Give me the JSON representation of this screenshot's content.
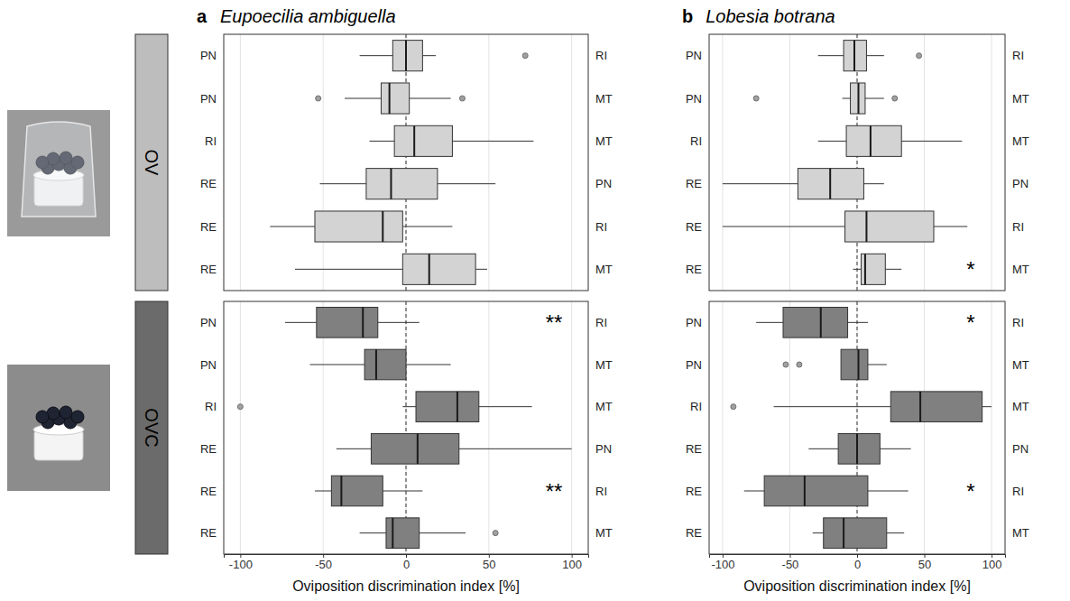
{
  "chart_data": [
    {
      "type": "box",
      "orientation": "horizontal",
      "panel_label": "a",
      "title": "Eupoecilia ambiguella",
      "group_label": "OV",
      "grid": true,
      "tick_labels": false,
      "color": "#d3d3d3",
      "xlim": [
        -110,
        110
      ],
      "xticks": [
        -100,
        -50,
        0,
        50,
        100
      ],
      "reference_x": 0,
      "categories": [
        "PN",
        "PN",
        "RI",
        "RE",
        "RE",
        "RE"
      ],
      "categories_right": [
        "RI",
        "MT",
        "MT",
        "PN",
        "RI",
        "MT"
      ],
      "boxes": [
        {
          "whisker_low": -28,
          "q1": -8,
          "median": 0,
          "q3": 10,
          "whisker_high": 18,
          "outliers": [
            72
          ]
        },
        {
          "whisker_low": -37,
          "q1": -15,
          "median": -10,
          "q3": 2,
          "whisker_high": 27,
          "outliers": [
            -53,
            34
          ]
        },
        {
          "whisker_low": -22,
          "q1": -7,
          "median": 5,
          "q3": 28,
          "whisker_high": 77,
          "outliers": []
        },
        {
          "whisker_low": -52,
          "q1": -24,
          "median": -9,
          "q3": 19,
          "whisker_high": 54,
          "outliers": []
        },
        {
          "whisker_low": -82,
          "q1": -55,
          "median": -14,
          "q3": -2,
          "whisker_high": 28,
          "outliers": []
        },
        {
          "whisker_low": -67,
          "q1": -2,
          "median": 14,
          "q3": 42,
          "whisker_high": 49,
          "outliers": []
        }
      ],
      "significance": [
        null,
        null,
        null,
        null,
        null,
        null
      ]
    },
    {
      "type": "box",
      "orientation": "horizontal",
      "group_label": "OVC",
      "xlabel": "Oviposition discrimination index [%]",
      "grid": true,
      "color": "#808080",
      "xlim": [
        -110,
        110
      ],
      "xticks": [
        -100,
        -50,
        0,
        50,
        100
      ],
      "reference_x": 0,
      "categories": [
        "PN",
        "PN",
        "RI",
        "RE",
        "RE",
        "RE"
      ],
      "categories_right": [
        "RI",
        "MT",
        "MT",
        "PN",
        "RI",
        "MT"
      ],
      "boxes": [
        {
          "whisker_low": -73,
          "q1": -54,
          "median": -26,
          "q3": -17,
          "whisker_high": 8,
          "outliers": []
        },
        {
          "whisker_low": -58,
          "q1": -25,
          "median": -18,
          "q3": 0,
          "whisker_high": 27,
          "outliers": []
        },
        {
          "whisker_low": -2,
          "q1": 6,
          "median": 31,
          "q3": 44,
          "whisker_high": 76,
          "outliers": [
            -100
          ]
        },
        {
          "whisker_low": -42,
          "q1": -21,
          "median": 7,
          "q3": 32,
          "whisker_high": 100,
          "outliers": []
        },
        {
          "whisker_low": -55,
          "q1": -45,
          "median": -39,
          "q3": -14,
          "whisker_high": 10,
          "outliers": []
        },
        {
          "whisker_low": -28,
          "q1": -12,
          "median": -8,
          "q3": 8,
          "whisker_high": 36,
          "outliers": [
            54
          ]
        }
      ],
      "significance": [
        "**",
        null,
        null,
        null,
        "**",
        null
      ]
    },
    {
      "type": "box",
      "orientation": "horizontal",
      "panel_label": "b",
      "title": "Lobesia botrana",
      "grid": true,
      "tick_labels": false,
      "color": "#d3d3d3",
      "xlim": [
        -110,
        110
      ],
      "xticks": [
        -100,
        -50,
        0,
        50,
        100
      ],
      "reference_x": 0,
      "categories": [
        "PN",
        "PN",
        "RI",
        "RE",
        "RE",
        "RE"
      ],
      "categories_right": [
        "RI",
        "MT",
        "MT",
        "PN",
        "RI",
        "MT"
      ],
      "boxes": [
        {
          "whisker_low": -29,
          "q1": -10,
          "median": -2,
          "q3": 7,
          "whisker_high": 20,
          "outliers": [
            46
          ]
        },
        {
          "whisker_low": -11,
          "q1": -5,
          "median": 1,
          "q3": 6,
          "whisker_high": 20,
          "outliers": [
            -75,
            28
          ]
        },
        {
          "whisker_low": -29,
          "q1": -8,
          "median": 10,
          "q3": 33,
          "whisker_high": 78,
          "outliers": []
        },
        {
          "whisker_low": -100,
          "q1": -44,
          "median": -20,
          "q3": 5,
          "whisker_high": 20,
          "outliers": []
        },
        {
          "whisker_low": -100,
          "q1": -9,
          "median": 7,
          "q3": 57,
          "whisker_high": 82,
          "outliers": []
        },
        {
          "whisker_low": -3,
          "q1": 3,
          "median": 6,
          "q3": 21,
          "whisker_high": 33,
          "outliers": []
        }
      ],
      "significance": [
        null,
        null,
        null,
        null,
        null,
        "*"
      ]
    },
    {
      "type": "box",
      "orientation": "horizontal",
      "xlabel": "Oviposition discrimination index [%]",
      "grid": true,
      "color": "#808080",
      "xlim": [
        -110,
        110
      ],
      "xticks": [
        -100,
        -50,
        0,
        50,
        100
      ],
      "reference_x": 0,
      "categories": [
        "PN",
        "PN",
        "RI",
        "RE",
        "RE",
        "RE"
      ],
      "categories_right": [
        "RI",
        "MT",
        "MT",
        "PN",
        "RI",
        "MT"
      ],
      "boxes": [
        {
          "whisker_low": -75,
          "q1": -55,
          "median": -27,
          "q3": -7,
          "whisker_high": 8,
          "outliers": []
        },
        {
          "whisker_low": -12,
          "q1": -12,
          "median": 1,
          "q3": 8,
          "whisker_high": 22,
          "outliers": [
            -53,
            -43
          ]
        },
        {
          "whisker_low": -62,
          "q1": 25,
          "median": 47,
          "q3": 93,
          "whisker_high": 100,
          "outliers": [
            -92
          ]
        },
        {
          "whisker_low": -36,
          "q1": -14,
          "median": 0,
          "q3": 17,
          "whisker_high": 40,
          "outliers": []
        },
        {
          "whisker_low": -84,
          "q1": -69,
          "median": -39,
          "q3": 8,
          "whisker_high": 38,
          "outliers": []
        },
        {
          "whisker_low": -33,
          "q1": -25,
          "median": -10,
          "q3": 22,
          "whisker_high": 35,
          "outliers": []
        }
      ],
      "significance": [
        "*",
        null,
        null,
        null,
        "*",
        null
      ]
    }
  ]
}
